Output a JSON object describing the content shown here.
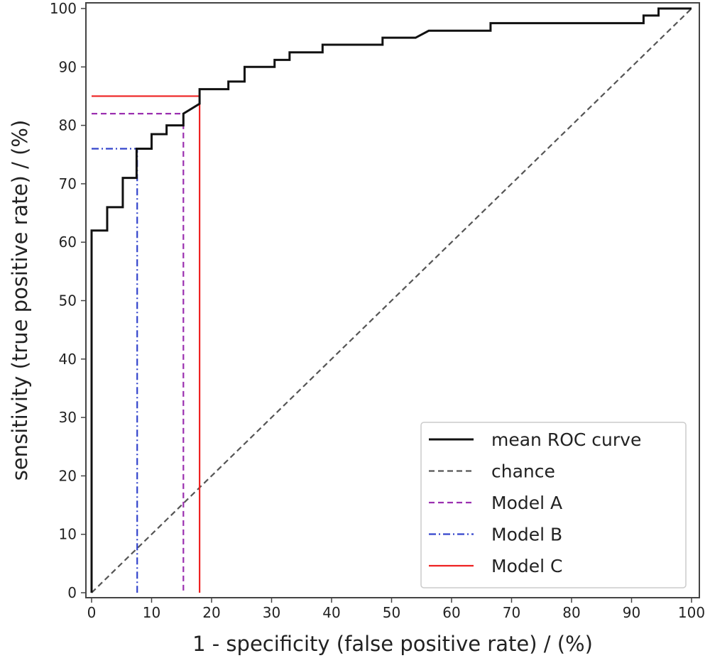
{
  "chart_data": {
    "type": "line",
    "xlabel": "1 - specificity (false positive rate) / (%)",
    "ylabel": "sensitivity (true positive rate) / (%)",
    "xlim": [
      -1,
      101
    ],
    "ylim": [
      -1,
      101
    ],
    "xticks": [
      0,
      10,
      20,
      30,
      40,
      50,
      60,
      70,
      80,
      90,
      100
    ],
    "yticks": [
      0,
      10,
      20,
      30,
      40,
      50,
      60,
      70,
      80,
      90,
      100
    ],
    "grid": false,
    "legend_position": "bottom-right",
    "series": [
      {
        "name": "mean ROC curve",
        "color": "#111111",
        "style": "solid",
        "x": [
          0,
          0,
          2.6,
          2.6,
          5.2,
          5.2,
          7.5,
          7.5,
          10,
          10,
          12.5,
          12.5,
          15.3,
          15.3,
          18,
          18,
          22.8,
          22.8,
          25.5,
          25.5,
          30.5,
          30.5,
          33,
          33,
          38.5,
          38.5,
          48.5,
          48.5,
          54,
          56.2,
          66.5,
          66.5,
          92,
          92,
          94.5,
          94.5,
          100
        ],
        "y": [
          0,
          62,
          62,
          66,
          66,
          71,
          71,
          76,
          76,
          78.5,
          78.5,
          80,
          80,
          82,
          83.7,
          86.2,
          86.2,
          87.5,
          87.5,
          90,
          90,
          91.2,
          91.2,
          92.5,
          92.5,
          93.8,
          93.8,
          95,
          95,
          96.2,
          96.2,
          97.5,
          97.5,
          98.8,
          98.8,
          100,
          100
        ]
      },
      {
        "name": "chance",
        "color": "#555555",
        "style": "dashed",
        "x": [
          0,
          100
        ],
        "y": [
          0,
          100
        ]
      },
      {
        "name": "Model A",
        "color": "#9b30b0",
        "style": "dashed",
        "x": [
          0,
          15.3,
          15.3
        ],
        "y": [
          82,
          82,
          0
        ]
      },
      {
        "name": "Model B",
        "color": "#3344cc",
        "style": "dashdot",
        "x": [
          0,
          7.6,
          7.6
        ],
        "y": [
          76,
          76,
          0
        ]
      },
      {
        "name": "Model C",
        "color": "#ee2222",
        "style": "solid",
        "x": [
          0,
          18,
          18
        ],
        "y": [
          85,
          85,
          0
        ]
      }
    ]
  }
}
